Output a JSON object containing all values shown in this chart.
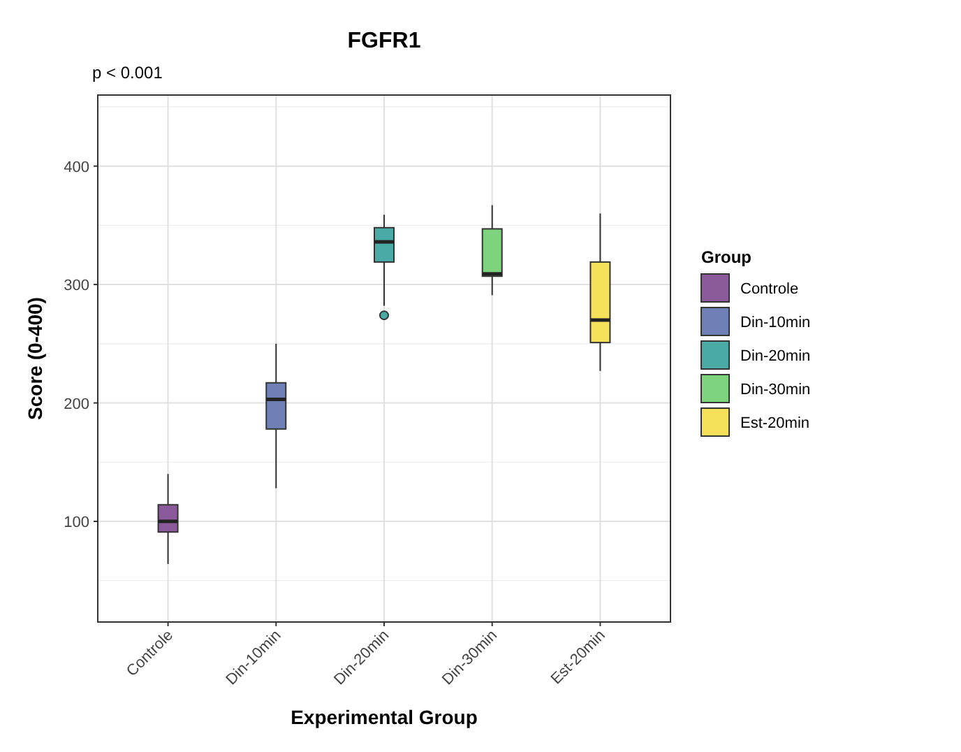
{
  "chart_data": {
    "type": "box",
    "title": "FGFR1",
    "xlabel": "Experimental Group",
    "ylabel": "Score (0-400)",
    "legend_title": "Group",
    "annotations": [
      "p < 0.001"
    ],
    "categories": [
      "Controle",
      "Din-10min",
      "Din-20min",
      "Din-30min",
      "Est-20min"
    ],
    "series": [
      {
        "name": "Controle",
        "color": "#8b5a9a",
        "boxes": [
          {
            "low": 64,
            "q1": 91,
            "median": 100,
            "q3": 114,
            "high": 140
          },
          null,
          null,
          null,
          null
        ]
      },
      {
        "name": "Din-10min",
        "color": "#6f80b6",
        "boxes": [
          null,
          {
            "low": 128,
            "q1": 178,
            "median": 203,
            "q3": 217,
            "high": 250
          },
          null,
          null,
          null
        ]
      },
      {
        "name": "Din-20min",
        "color": "#4aaba6",
        "boxes": [
          null,
          null,
          {
            "low": 282,
            "q1": 319,
            "median": 336,
            "q3": 348,
            "high": 359,
            "outliers": [
              274
            ]
          },
          null,
          null
        ]
      },
      {
        "name": "Din-30min",
        "color": "#7ed37e",
        "boxes": [
          null,
          null,
          null,
          {
            "low": 291,
            "q1": 307,
            "median": 309,
            "q3": 347,
            "high": 367
          },
          null
        ]
      },
      {
        "name": "Est-20min",
        "color": "#f5e05a",
        "boxes": [
          null,
          null,
          null,
          null,
          {
            "low": 227,
            "q1": 251,
            "median": 270,
            "q3": 319,
            "high": 360
          }
        ]
      }
    ],
    "ylim": [
      15,
      460
    ],
    "yticks": [
      100,
      200,
      300,
      400
    ],
    "grid": true,
    "legend": "right"
  }
}
